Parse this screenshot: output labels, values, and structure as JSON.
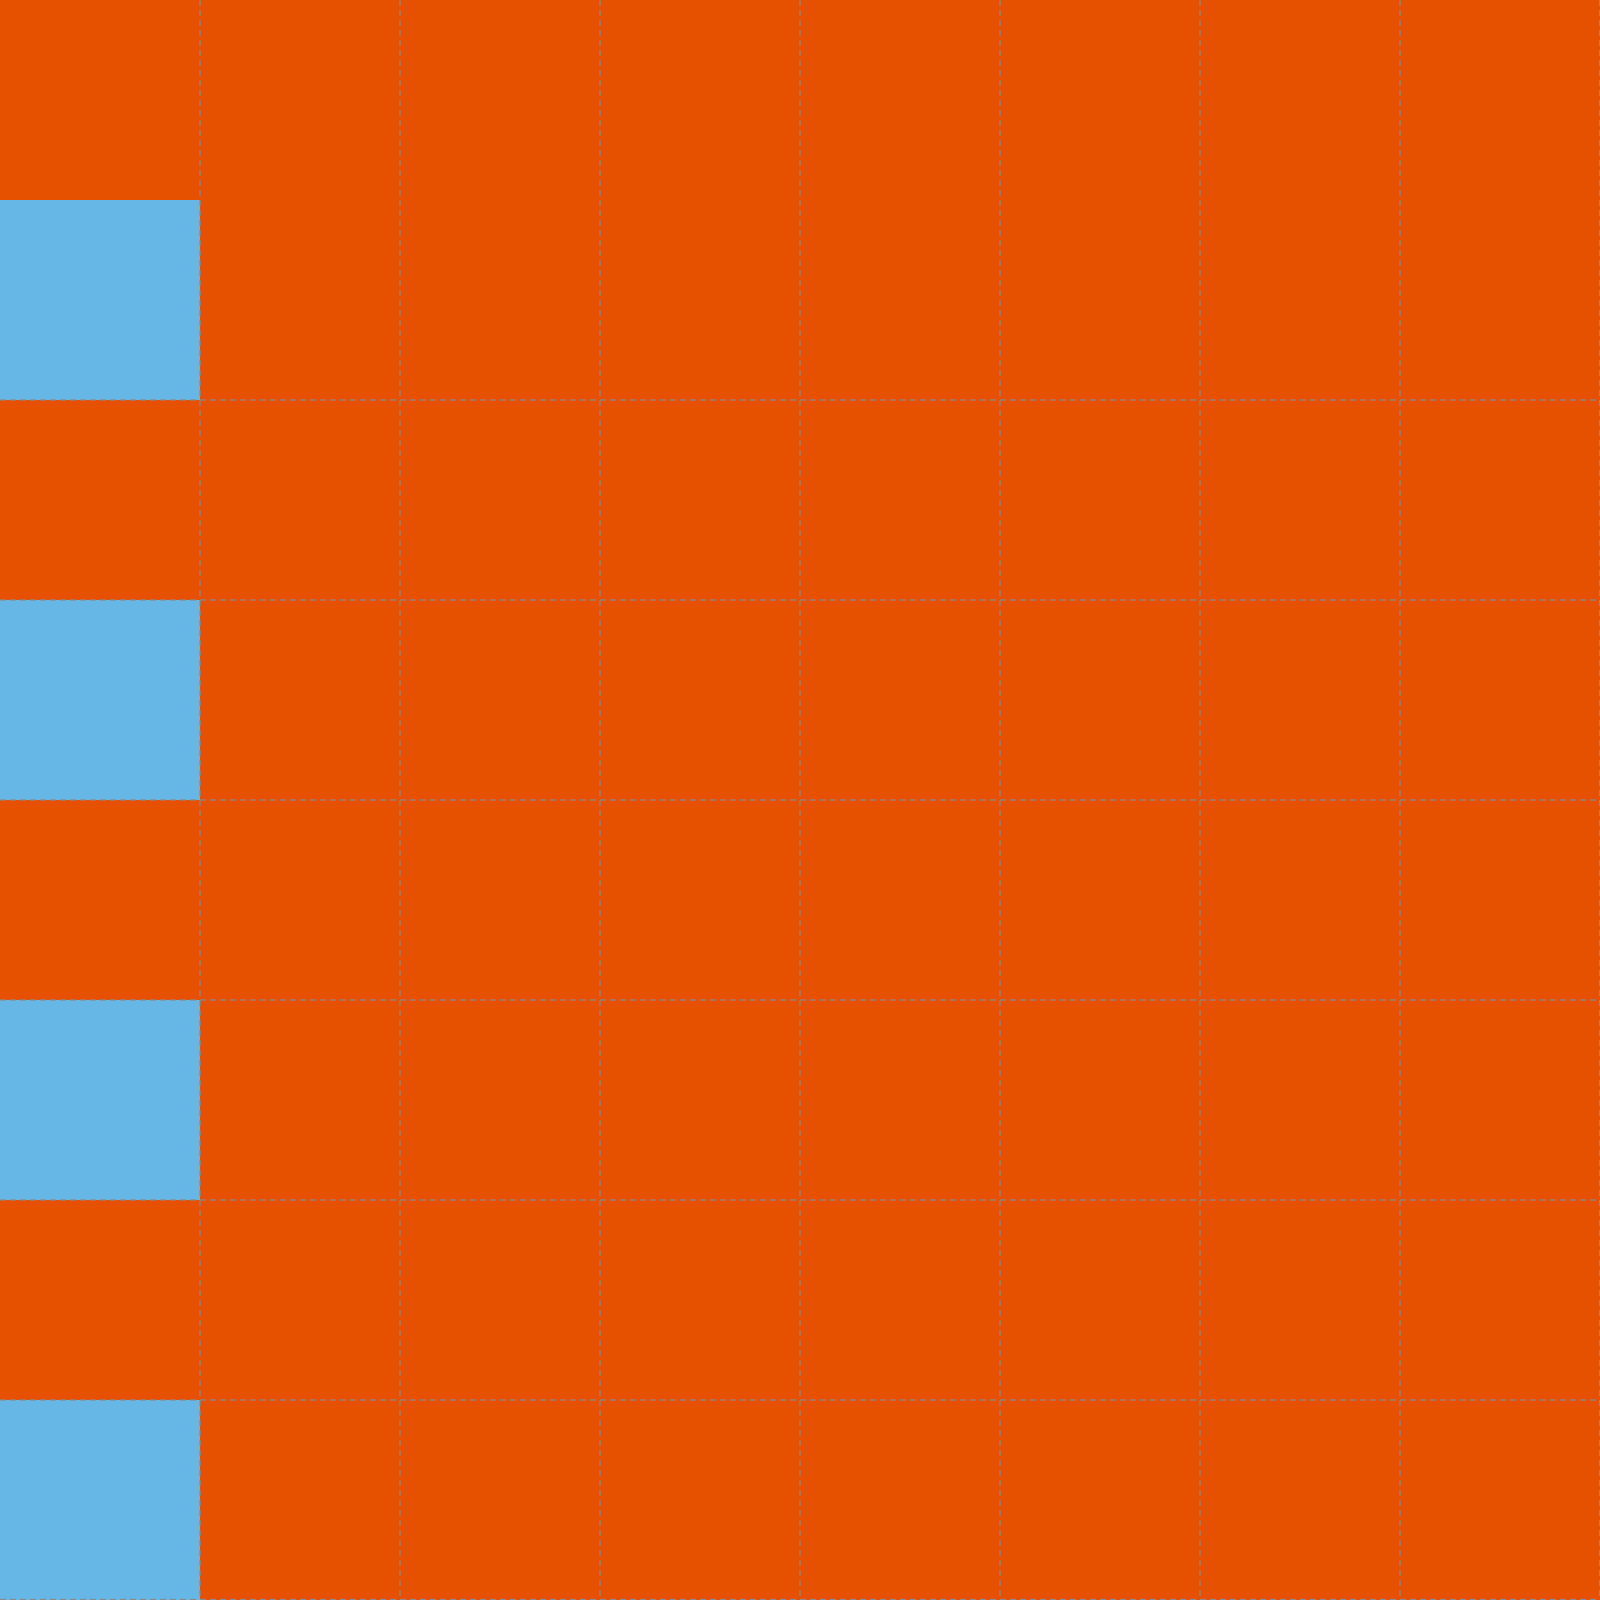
{
  "board": {
    "palette": [
      "#e65100",
      "#66b6e6"
    ],
    "cells": [
      [
        0,
        0,
        0,
        0,
        0,
        0,
        0,
        0
      ],
      [
        1,
        0,
        0,
        0,
        0,
        0,
        0,
        0
      ],
      [
        0,
        0,
        0,
        0,
        0,
        0,
        0,
        0
      ],
      [
        1,
        0,
        0,
        0,
        0,
        0,
        0,
        0
      ],
      [
        0,
        0,
        0,
        0,
        0,
        0,
        0,
        0
      ],
      [
        1,
        0,
        0,
        0,
        0,
        0,
        0,
        0
      ],
      [
        0,
        0,
        0,
        0,
        0,
        0,
        0,
        0
      ],
      [
        1,
        0,
        0,
        0,
        0,
        0,
        0,
        0
      ]
    ]
  }
}
